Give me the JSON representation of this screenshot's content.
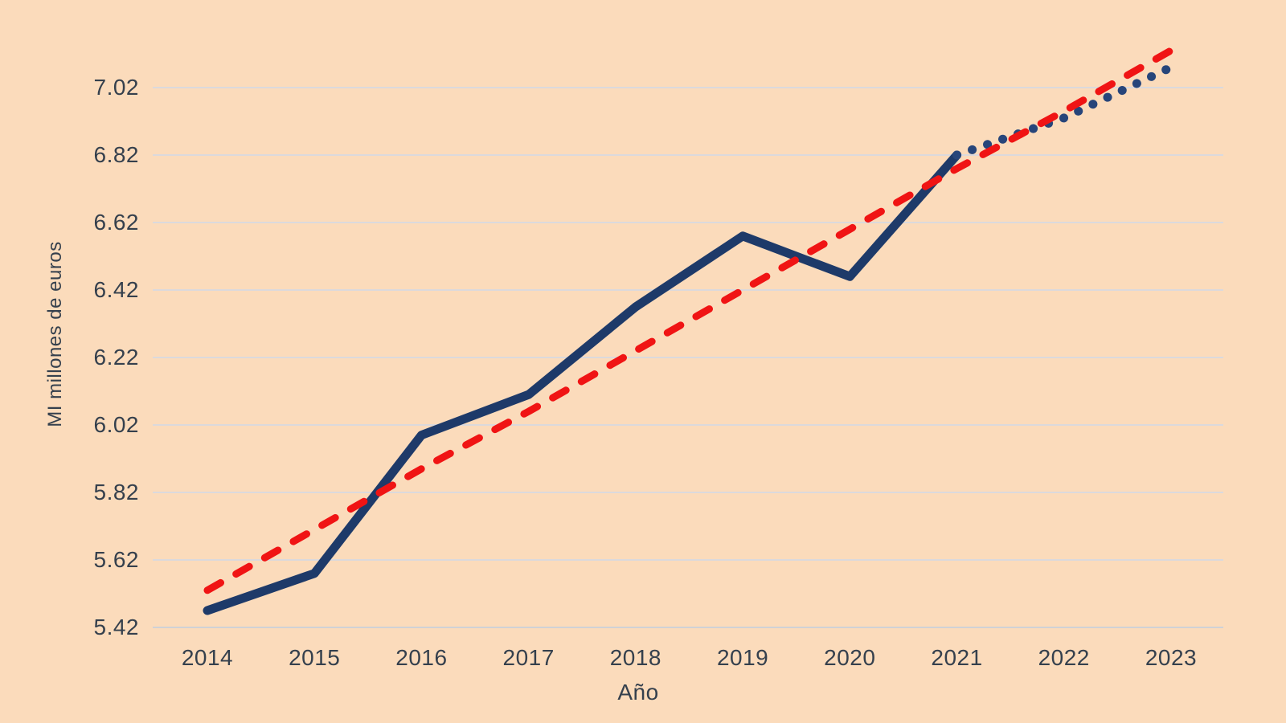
{
  "chart_data": {
    "type": "line",
    "title": "",
    "xlabel": "Año",
    "ylabel": "MI millones de euros",
    "x": [
      2014,
      2015,
      2016,
      2017,
      2018,
      2019,
      2020,
      2021,
      2022,
      2023
    ],
    "x_tick_labels": [
      "2014",
      "2015",
      "2016",
      "2017",
      "2018",
      "2019",
      "2020",
      "2021",
      "2022",
      "2023"
    ],
    "y_ticks": [
      5.42,
      5.62,
      5.82,
      6.02,
      6.22,
      6.42,
      6.62,
      6.82,
      7.02
    ],
    "y_tick_labels": [
      "5.42",
      "5.62",
      "5.82",
      "6.02",
      "6.22",
      "6.42",
      "6.62",
      "6.82",
      "7.02"
    ],
    "ylim": [
      5.42,
      7.22
    ],
    "grid": "horizontal",
    "legend": "none",
    "series": [
      {
        "id": "actual-solid",
        "style": "solid",
        "color": "#1E3A69",
        "x": [
          2014,
          2015,
          2016,
          2017,
          2018,
          2019,
          2020,
          2021
        ],
        "values": [
          5.47,
          5.58,
          5.99,
          6.11,
          6.37,
          6.58,
          6.46,
          6.82
        ]
      },
      {
        "id": "projection-dotted",
        "style": "dotted",
        "color": "#27457A",
        "x": [
          2021,
          2022,
          2023
        ],
        "values": [
          6.82,
          6.93,
          7.08
        ]
      },
      {
        "id": "trend-dashed",
        "style": "dashed",
        "color": "#F01414",
        "x": [
          2014,
          2015,
          2016,
          2017,
          2018,
          2019,
          2020,
          2021,
          2022,
          2023
        ],
        "values": [
          5.53,
          5.71,
          5.89,
          6.06,
          6.24,
          6.42,
          6.6,
          6.78,
          6.95,
          7.13
        ]
      }
    ],
    "colors": {
      "background": "#FBDBBB",
      "grid": "#DBD9DC",
      "axis_line": "#CFD1D6",
      "text": "#35404D"
    }
  }
}
